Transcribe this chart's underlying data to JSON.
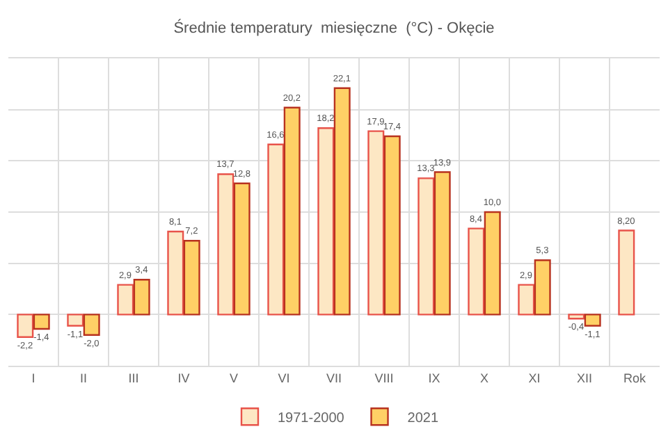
{
  "chart_data": {
    "type": "bar",
    "title": "Średnie temperatury  miesięczne  (°C) - Okęcie",
    "categories": [
      "I",
      "II",
      "III",
      "IV",
      "V",
      "VI",
      "VII",
      "VIII",
      "IX",
      "X",
      "XI",
      "XII",
      "Rok"
    ],
    "series": [
      {
        "name": "1971-2000",
        "color": "#fde7c4",
        "values": [
          -2.2,
          -1.1,
          2.9,
          8.1,
          13.7,
          16.6,
          18.2,
          17.9,
          13.3,
          8.4,
          2.9,
          -0.4,
          8.2
        ],
        "value_labels": [
          "-2,2",
          "-1,1",
          "2,9",
          "8,1",
          "13,7",
          "16,6",
          "18,2",
          "17,9",
          "13,3",
          "8,4",
          "2,9",
          "-0,4",
          "8,20"
        ]
      },
      {
        "name": "2021",
        "color": "#ffd066",
        "values": [
          -1.4,
          -2.0,
          3.4,
          7.2,
          12.8,
          20.2,
          22.1,
          17.4,
          13.9,
          10.0,
          5.3,
          -1.1,
          null
        ],
        "value_labels": [
          "-1,4",
          "-2,0",
          "3,4",
          "7,2",
          "12,8",
          "20,2",
          "22,1",
          "17,4",
          "13,9",
          "10,0",
          "5,3",
          "-1,1",
          null
        ]
      }
    ],
    "ylim": [
      -5,
      25
    ],
    "yticks": [
      {
        "value": -5,
        "label": null
      },
      {
        "value": 0,
        "label": null
      },
      {
        "value": 5,
        "label": null
      },
      {
        "value": 10,
        "label": null
      },
      {
        "value": 15,
        "label": null
      },
      {
        "value": 20,
        "label": null
      }
    ],
    "tick_labels": "x",
    "grid": true,
    "legend": "bottom"
  }
}
